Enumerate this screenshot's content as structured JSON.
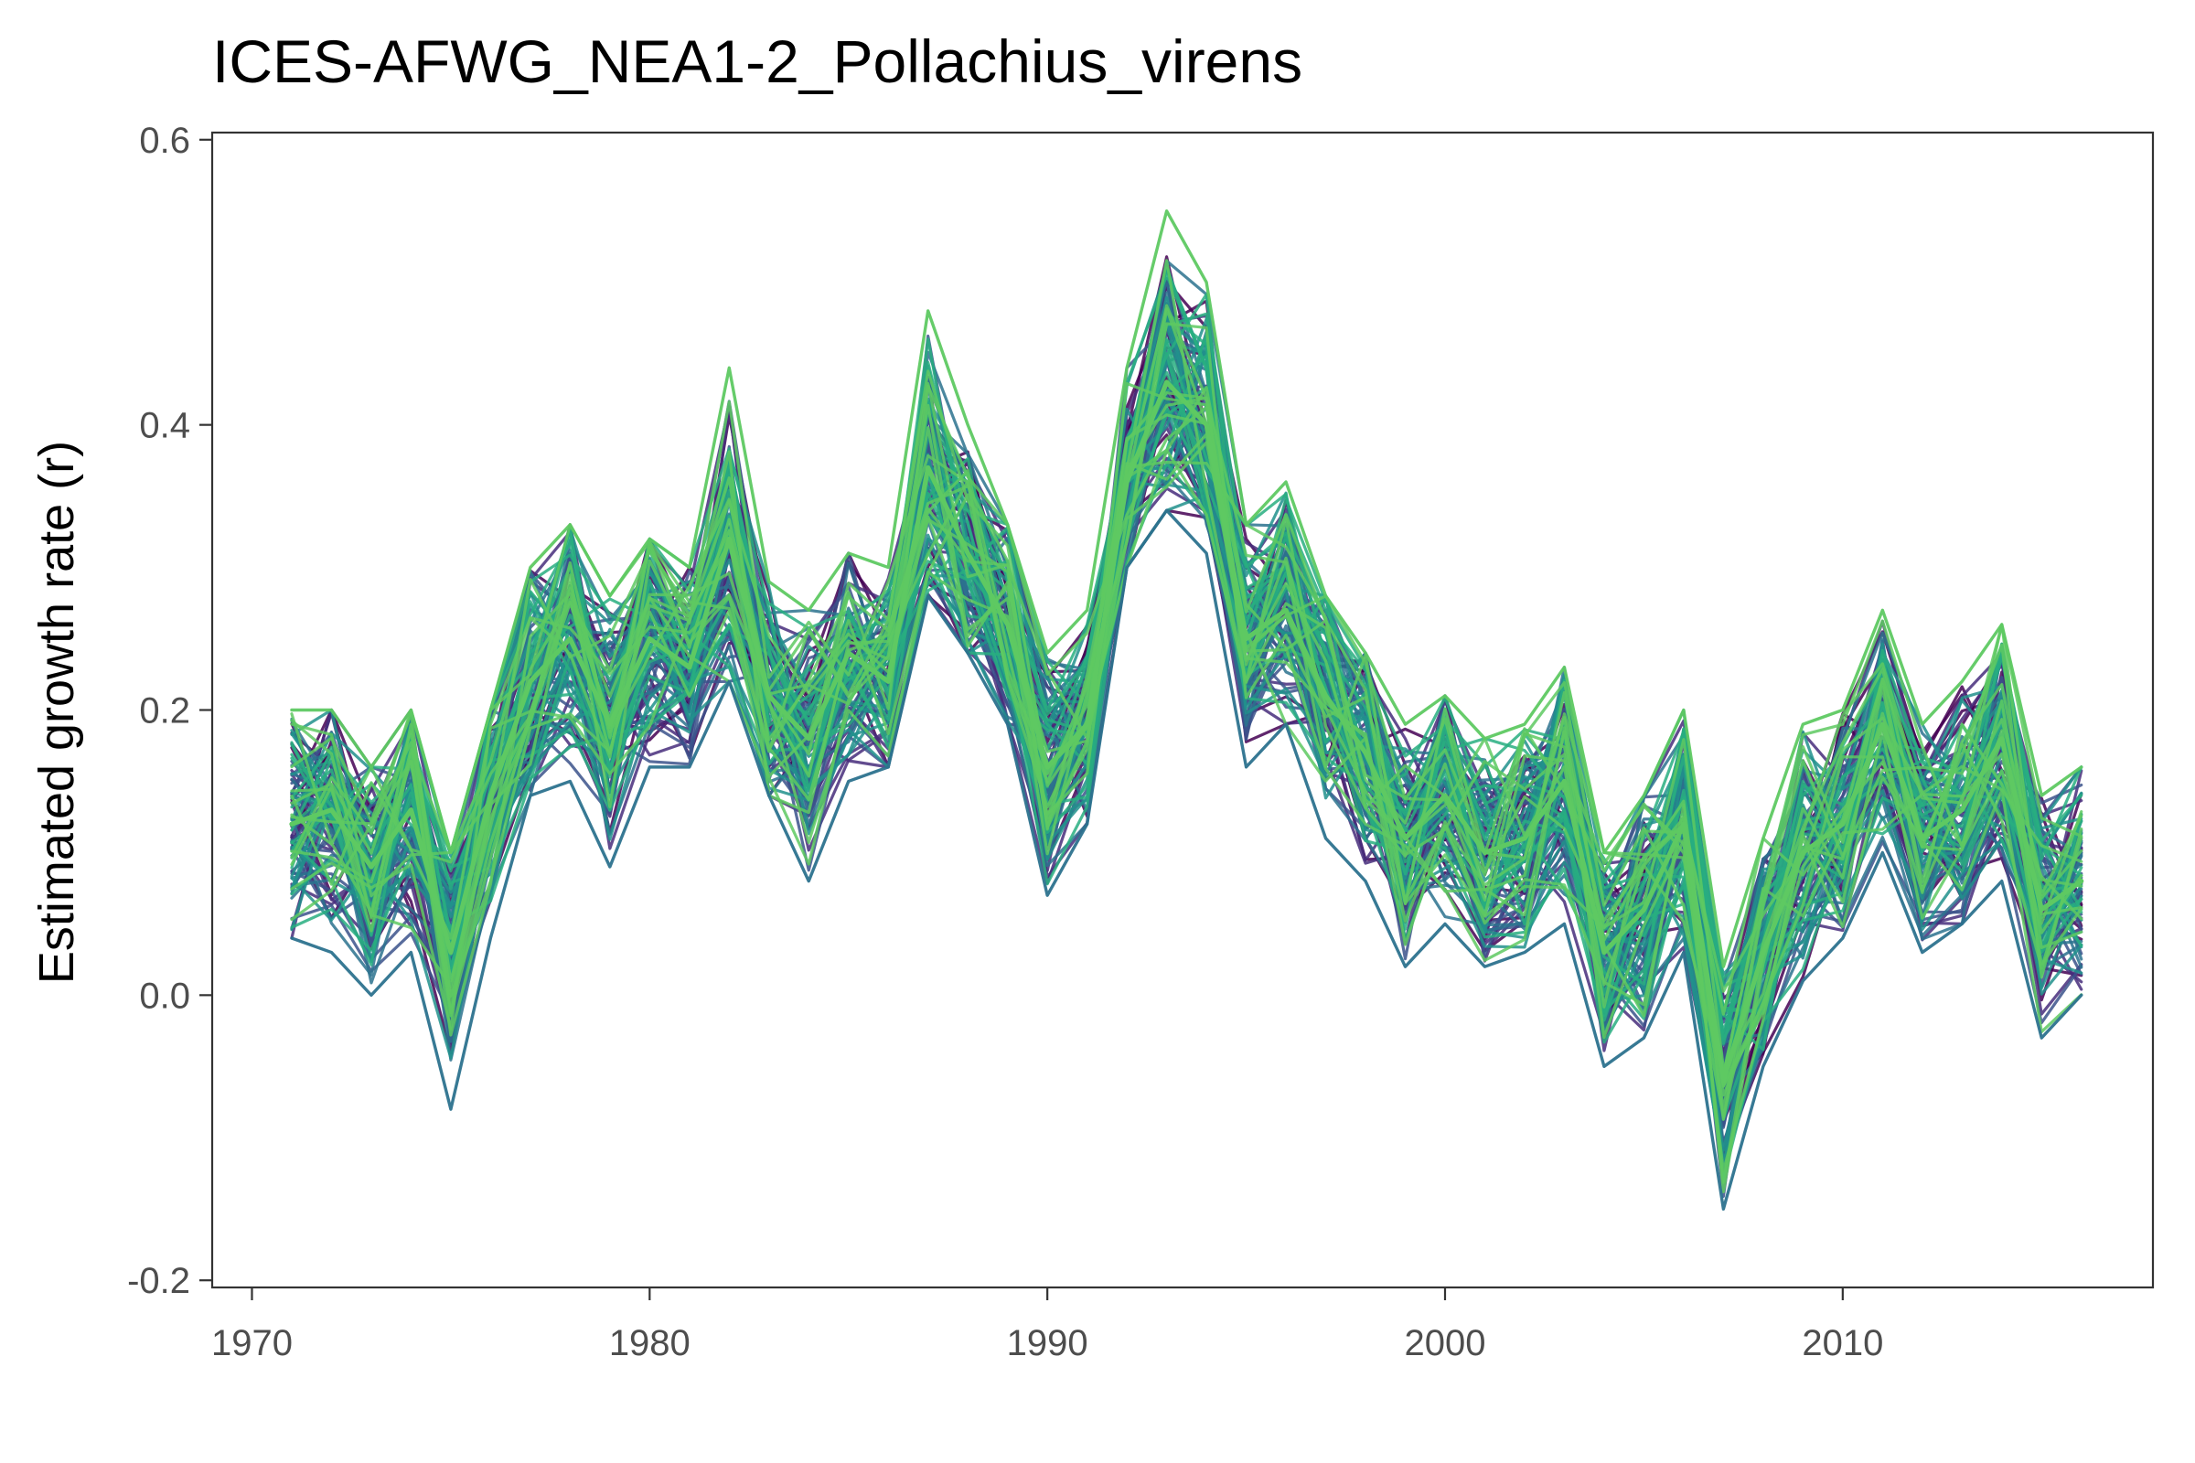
{
  "chart_data": {
    "type": "line",
    "title": "ICES-AFWG_NEA1-2_Pollachius_virens",
    "xlabel": "",
    "ylabel": "Estimated growth rate (r)",
    "xlim": [
      1969.0,
      2017.8
    ],
    "ylim": [
      -0.205,
      0.605
    ],
    "xticks": [
      1970,
      1980,
      1990,
      2000,
      2010
    ],
    "yticks": [
      -0.2,
      0.0,
      0.2,
      0.4,
      0.6
    ],
    "xtick_labels": [
      "1970",
      "1980",
      "1990",
      "2000",
      "2010"
    ],
    "ytick_labels": [
      "-0.2",
      "0.0",
      "0.2",
      "0.4",
      "0.6"
    ],
    "grid": false,
    "legend": "none",
    "palette": [
      "#440154",
      "#472d7b",
      "#3b528b",
      "#2c728e",
      "#21918c",
      "#28ae80",
      "#5ec962"
    ],
    "x": [
      1971,
      1972,
      1973,
      1974,
      1975,
      1976,
      1977,
      1978,
      1979,
      1980,
      1981,
      1982,
      1983,
      1984,
      1985,
      1986,
      1987,
      1988,
      1989,
      1990,
      1991,
      1992,
      1993,
      1994,
      1995,
      1996,
      1997,
      1998,
      1999,
      2000,
      2001,
      2002,
      2003,
      2004,
      2005,
      2006,
      2007,
      2008,
      2009,
      2010,
      2011,
      2012,
      2013,
      2014,
      2015,
      2016
    ],
    "central_series": {
      "name": "",
      "values": [
        0.12,
        0.13,
        0.09,
        0.13,
        0.03,
        0.14,
        0.22,
        0.25,
        0.19,
        0.25,
        0.23,
        0.32,
        0.21,
        0.18,
        0.24,
        0.22,
        0.37,
        0.31,
        0.26,
        0.16,
        0.19,
        0.36,
        0.43,
        0.4,
        0.25,
        0.27,
        0.21,
        0.17,
        0.11,
        0.14,
        0.1,
        0.11,
        0.15,
        0.03,
        0.06,
        0.12,
        -0.06,
        0.03,
        0.1,
        0.12,
        0.19,
        0.11,
        0.13,
        0.18,
        0.06,
        0.08
      ]
    },
    "envelope_series": [
      {
        "name": "",
        "values": [
          0.04,
          0.03,
          0.0,
          0.03,
          -0.08,
          0.04,
          0.14,
          0.15,
          0.09,
          0.16,
          0.16,
          0.22,
          0.14,
          0.08,
          0.15,
          0.16,
          0.28,
          0.24,
          0.19,
          0.07,
          0.12,
          0.3,
          0.34,
          0.31,
          0.16,
          0.19,
          0.11,
          0.08,
          0.02,
          0.05,
          0.02,
          0.03,
          0.05,
          -0.05,
          -0.03,
          0.03,
          -0.15,
          -0.05,
          0.01,
          0.04,
          0.1,
          0.03,
          0.05,
          0.08,
          -0.03,
          0.0
        ]
      },
      {
        "name": "",
        "values": [
          0.2,
          0.2,
          0.16,
          0.2,
          0.1,
          0.2,
          0.3,
          0.33,
          0.28,
          0.32,
          0.3,
          0.44,
          0.29,
          0.27,
          0.31,
          0.3,
          0.48,
          0.4,
          0.33,
          0.24,
          0.27,
          0.44,
          0.55,
          0.5,
          0.33,
          0.36,
          0.28,
          0.24,
          0.19,
          0.21,
          0.18,
          0.19,
          0.23,
          0.1,
          0.14,
          0.2,
          0.02,
          0.11,
          0.19,
          0.2,
          0.27,
          0.19,
          0.22,
          0.26,
          0.14,
          0.16
        ]
      }
    ],
    "replicate_count": 100
  }
}
